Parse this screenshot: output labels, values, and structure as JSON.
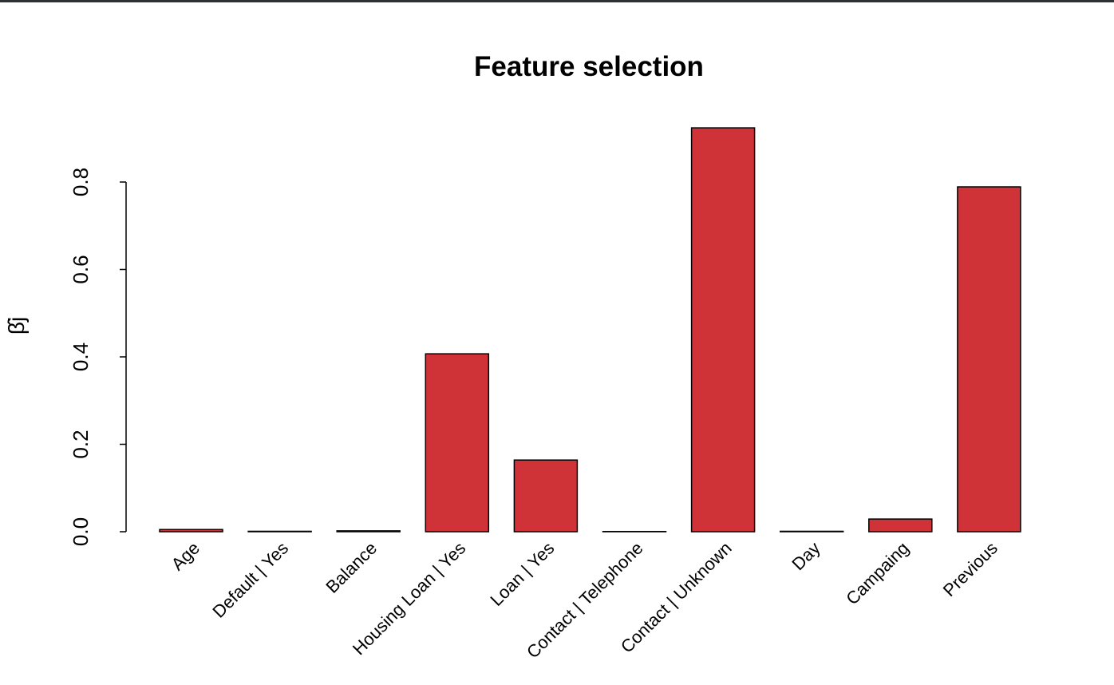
{
  "chart_data": {
    "type": "bar",
    "title": "Feature selection",
    "y_label": "β̂j",
    "categories": [
      "Age",
      "Default | Yes",
      "Balance",
      "Housing Loan | Yes",
      "Loan | Yes",
      "Contact | Telephone",
      "Contact | Unknown",
      "Day",
      "Campaing",
      "Previous"
    ],
    "values": [
      0.005,
      0.001,
      0.002,
      0.407,
      0.164,
      0.0005,
      0.924,
      0.001,
      0.029,
      0.789
    ],
    "color": "#d03337",
    "ylim": [
      0,
      0.95
    ],
    "yticks": [
      {
        "value": 0,
        "label": "0.0"
      },
      0.2,
      0.4,
      0.6,
      0.8
    ]
  }
}
